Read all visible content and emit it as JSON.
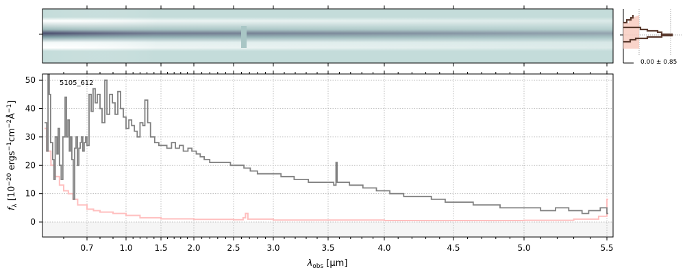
{
  "chart_data": {
    "type": "line",
    "title": "",
    "annotation": "5105_612",
    "xlabel": {
      "symbol": "λ",
      "sub": "obs",
      "unit": " [μm]"
    },
    "ylabel": {
      "symbol": "f",
      "sub": "λ",
      "text": " [10",
      "e1": "−20",
      "t2": " ergs",
      "e2": "−1",
      "t3": "cm",
      "e3": "−2",
      "t4": "Å",
      "e4": "−1",
      "t5": "]"
    },
    "xticks": [
      "0.7",
      "1.0",
      "1.5",
      "2.0",
      "2.5",
      "3.0",
      "3.5",
      "4.0",
      "4.5",
      "5.0",
      "5.5"
    ],
    "xtick_values": [
      0.7,
      1.0,
      1.5,
      2.0,
      2.5,
      3.0,
      3.5,
      4.0,
      4.5,
      5.0,
      5.5
    ],
    "yticks": [
      "0",
      "10",
      "20",
      "30",
      "40",
      "50"
    ],
    "ytick_values": [
      0,
      10,
      20,
      30,
      40,
      50
    ],
    "xlim": [
      0.55,
      5.52
    ],
    "ylim": [
      -5.3,
      52.2
    ],
    "grid": true,
    "colors": {
      "flux": "#808080",
      "error": "#ffbfbf",
      "profile": "#5a3a2e",
      "profile_fill": "#f7c9bd"
    },
    "series": [
      {
        "name": "flux",
        "x": [
          0.555,
          0.56,
          0.563,
          0.566,
          0.569,
          0.574,
          0.577,
          0.58,
          0.584,
          0.587,
          0.59,
          0.594,
          0.598,
          0.606,
          0.612,
          0.618,
          0.624,
          0.629,
          0.635,
          0.641,
          0.647,
          0.653,
          0.659,
          0.665,
          0.671,
          0.676,
          0.682,
          0.688,
          0.694,
          0.7,
          0.716,
          0.732,
          0.747,
          0.763,
          0.779,
          0.8,
          0.816,
          0.837,
          0.853,
          0.874,
          0.895,
          0.916,
          0.937,
          0.958,
          0.979,
          1.0,
          1.04,
          1.08,
          1.12,
          1.16,
          1.2,
          1.24,
          1.27,
          1.31,
          1.35,
          1.41,
          1.47,
          1.53,
          1.59,
          1.66,
          1.72,
          1.78,
          1.84,
          1.91,
          1.97,
          2.03,
          2.08,
          2.13,
          2.2,
          2.28,
          2.37,
          2.46,
          2.54,
          2.63,
          2.71,
          2.8,
          2.89,
          2.97,
          3.07,
          3.19,
          3.32,
          3.44,
          3.55,
          3.57,
          3.58,
          3.69,
          3.81,
          3.93,
          4.04,
          4.14,
          4.24,
          4.34,
          4.44,
          4.54,
          4.64,
          4.73,
          4.83,
          4.93,
          5.02,
          5.1,
          5.19,
          5.27,
          5.35,
          5.39,
          5.46,
          5.5
        ],
        "y": [
          35,
          25,
          52,
          45,
          28,
          22,
          15,
          30,
          24,
          33,
          20,
          15,
          30,
          44,
          30,
          36,
          25,
          30,
          22,
          8,
          26,
          30,
          20,
          26,
          28,
          30,
          25,
          28,
          30,
          27,
          45,
          39,
          47,
          42,
          45,
          40,
          35,
          50,
          38,
          45,
          42,
          38,
          46,
          40,
          37,
          33,
          36,
          34,
          32,
          30,
          35,
          34,
          43,
          35,
          30,
          28,
          27,
          27,
          26,
          28,
          26,
          27,
          25,
          26,
          25,
          24,
          23,
          22,
          21,
          21,
          21,
          20,
          20,
          19,
          18,
          17,
          17,
          17,
          16,
          15,
          14,
          14,
          13,
          21,
          14,
          13,
          12,
          11,
          10,
          9,
          9,
          8,
          7,
          7,
          6,
          6,
          5,
          5,
          5,
          4,
          5,
          4,
          3,
          4,
          5,
          3
        ]
      },
      {
        "name": "error",
        "x": [
          0.555,
          0.56,
          0.57,
          0.58,
          0.59,
          0.6,
          0.62,
          0.64,
          0.66,
          0.7,
          0.75,
          0.8,
          0.9,
          1.0,
          1.2,
          1.5,
          2.0,
          2.5,
          2.62,
          2.65,
          2.68,
          3.0,
          4.0,
          5.0,
          5.3,
          5.45,
          5.5
        ],
        "y": [
          33,
          25,
          20,
          16,
          13,
          11,
          10,
          8,
          6,
          4.5,
          4,
          3.5,
          3,
          2.3,
          1.5,
          1.1,
          0.9,
          0.8,
          1.5,
          3,
          1,
          0.7,
          0.5,
          0.6,
          1,
          2,
          8
        ]
      }
    ],
    "profile_label": "0.00 ± 0.85"
  }
}
